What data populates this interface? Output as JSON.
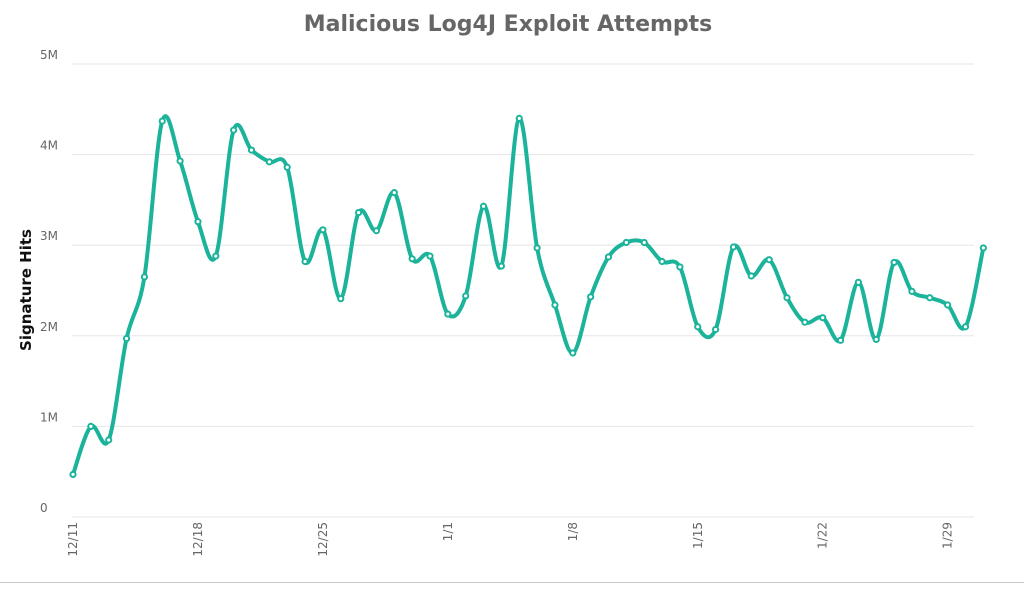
{
  "chart_data": {
    "type": "line",
    "title": "Malicious Log4J Exploit Attempts",
    "xlabel": "",
    "ylabel": "Signature Hits",
    "y_ticks": [
      {
        "value": 0,
        "label": "0"
      },
      {
        "value": 1000000,
        "label": "1M"
      },
      {
        "value": 2000000,
        "label": "2M"
      },
      {
        "value": 3000000,
        "label": "3M"
      },
      {
        "value": 4000000,
        "label": "4M"
      },
      {
        "value": 5000000,
        "label": "5M"
      }
    ],
    "ylim": [
      0,
      5000000
    ],
    "x_ticks": [
      {
        "index": 0,
        "label": "12/11"
      },
      {
        "index": 7,
        "label": "12/18"
      },
      {
        "index": 14,
        "label": "12/25"
      },
      {
        "index": 21,
        "label": "1/1"
      },
      {
        "index": 28,
        "label": "1/8"
      },
      {
        "index": 35,
        "label": "1/15"
      },
      {
        "index": 42,
        "label": "1/22"
      },
      {
        "index": 49,
        "label": "1/29"
      }
    ],
    "grid": true,
    "color": "#1cb39b",
    "series": [
      {
        "values": [
          470000,
          1000000,
          850000,
          1970000,
          2650000,
          4370000,
          3930000,
          3260000,
          2880000,
          4270000,
          4050000,
          3920000,
          3860000,
          2820000,
          3170000,
          2410000,
          3360000,
          3160000,
          3580000,
          2850000,
          2880000,
          2240000,
          2440000,
          3430000,
          2770000,
          4400000,
          2970000,
          2340000,
          1810000,
          2430000,
          2870000,
          3030000,
          3030000,
          2820000,
          2760000,
          2100000,
          2070000,
          2980000,
          2660000,
          2840000,
          2420000,
          2150000,
          2200000,
          1950000,
          2590000,
          1960000,
          2810000,
          2490000,
          2420000,
          2340000,
          2100000,
          2970000
        ]
      }
    ]
  }
}
